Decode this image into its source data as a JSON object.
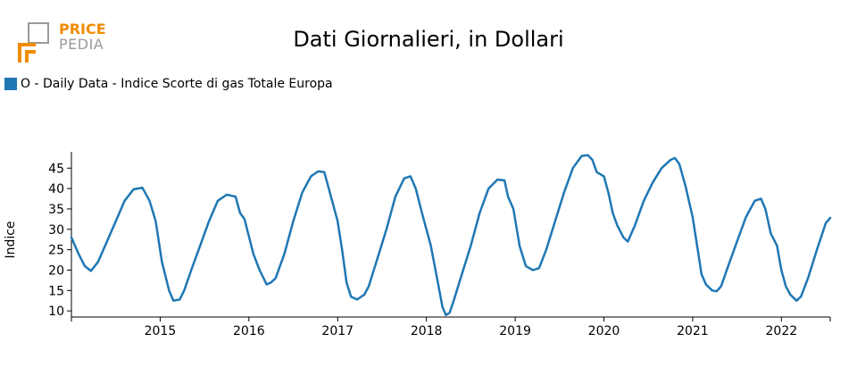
{
  "logo": {
    "price": "PRICE",
    "pedia": "PEDIA"
  },
  "chart_data": {
    "type": "line",
    "title": "Dati Giornalieri, in Dollari",
    "xlabel": "",
    "ylabel": "Indice",
    "ylim": [
      8.5,
      49
    ],
    "xlim": [
      2014.0,
      2022.55
    ],
    "x_ticks": [
      2015,
      2016,
      2017,
      2018,
      2019,
      2020,
      2021,
      2022
    ],
    "y_ticks": [
      10,
      15,
      20,
      25,
      30,
      35,
      40,
      45
    ],
    "legend_position": "top-left",
    "grid": false,
    "series": [
      {
        "name": "O - Daily Data - Indice Scorte di gas Totale Europa",
        "color": "#1f77b4",
        "x": [
          2014.0,
          2014.08,
          2014.15,
          2014.22,
          2014.3,
          2014.4,
          2014.5,
          2014.6,
          2014.7,
          2014.8,
          2014.88,
          2014.95,
          2015.02,
          2015.1,
          2015.15,
          2015.22,
          2015.27,
          2015.35,
          2015.45,
          2015.55,
          2015.65,
          2015.75,
          2015.85,
          2015.9,
          2015.95,
          2016.05,
          2016.12,
          2016.2,
          2016.25,
          2016.3,
          2016.4,
          2016.5,
          2016.6,
          2016.7,
          2016.78,
          2016.85,
          2016.9,
          2017.0,
          2017.05,
          2017.1,
          2017.15,
          2017.22,
          2017.3,
          2017.35,
          2017.45,
          2017.55,
          2017.65,
          2017.75,
          2017.82,
          2017.88,
          2017.95,
          2018.05,
          2018.12,
          2018.18,
          2018.22,
          2018.26,
          2018.3,
          2018.4,
          2018.5,
          2018.6,
          2018.7,
          2018.8,
          2018.88,
          2018.92,
          2018.98,
          2019.05,
          2019.12,
          2019.2,
          2019.27,
          2019.35,
          2019.45,
          2019.55,
          2019.65,
          2019.75,
          2019.82,
          2019.87,
          2019.92,
          2020.0,
          2020.05,
          2020.1,
          2020.15,
          2020.22,
          2020.27,
          2020.35,
          2020.45,
          2020.55,
          2020.65,
          2020.75,
          2020.8,
          2020.85,
          2020.92,
          2021.0,
          2021.05,
          2021.1,
          2021.15,
          2021.22,
          2021.27,
          2021.32,
          2021.4,
          2021.5,
          2021.6,
          2021.7,
          2021.77,
          2021.82,
          2021.88,
          2021.95,
          2022.0,
          2022.05,
          2022.1,
          2022.17,
          2022.22,
          2022.3,
          2022.4,
          2022.5,
          2022.55
        ],
        "values": [
          28,
          24,
          21,
          19.8,
          22,
          27,
          32,
          37,
          39.8,
          40.2,
          37,
          32,
          22,
          15,
          12.5,
          12.8,
          15,
          20,
          26,
          32,
          37,
          38.5,
          38,
          34,
          32.5,
          24,
          20,
          16.5,
          17,
          18,
          24,
          32,
          39,
          43,
          44.2,
          44,
          40,
          32,
          25,
          17,
          13.5,
          12.8,
          14,
          16,
          23,
          30,
          38,
          42.5,
          43,
          40,
          34,
          26,
          18,
          11,
          9,
          9.5,
          12,
          19,
          26,
          34,
          40,
          42.2,
          42,
          38,
          35,
          26,
          21,
          20,
          20.5,
          25,
          32,
          39,
          45,
          48,
          48.2,
          47,
          44,
          43,
          39,
          34,
          31,
          28,
          27,
          31,
          37,
          41.5,
          45,
          47,
          47.5,
          46,
          40.5,
          33,
          26,
          19,
          16.5,
          15,
          14.8,
          16,
          21,
          27,
          33,
          37,
          37.5,
          35,
          29,
          26,
          20,
          16,
          14,
          12.5,
          13.5,
          18,
          25,
          31.5,
          32.8
        ]
      }
    ]
  }
}
